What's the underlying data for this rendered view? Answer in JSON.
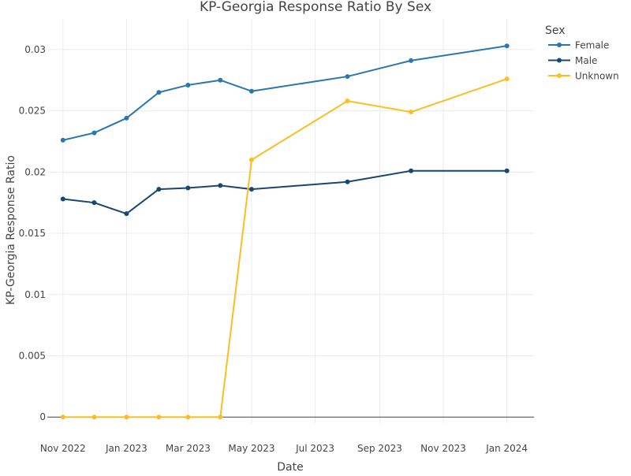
{
  "chart_data": {
    "type": "line",
    "title": "KP-Georgia Response Ratio By Sex",
    "xlabel": "Date",
    "ylabel": "KP-Georgia Response Ratio",
    "x": [
      "2022-11-01",
      "2022-12-01",
      "2023-01-01",
      "2023-02-01",
      "2023-03-01",
      "2023-04-01",
      "2023-05-01",
      "2023-08-01",
      "2023-10-01",
      "2024-01-01"
    ],
    "x_ticks": [
      {
        "date": "2022-11-01",
        "label": "Nov 2022"
      },
      {
        "date": "2023-01-01",
        "label": "Jan 2023"
      },
      {
        "date": "2023-03-01",
        "label": "Mar 2023"
      },
      {
        "date": "2023-05-01",
        "label": "May 2023"
      },
      {
        "date": "2023-07-01",
        "label": "Jul 2023"
      },
      {
        "date": "2023-09-01",
        "label": "Sep 2023"
      },
      {
        "date": "2023-11-01",
        "label": "Nov 2023"
      },
      {
        "date": "2024-01-01",
        "label": "Jan 2024"
      }
    ],
    "xlim": [
      "2022-10-17",
      "2024-01-27"
    ],
    "ylim": [
      -0.0005,
      0.0325
    ],
    "y_ticks": [
      {
        "value": 0,
        "label": "0"
      },
      {
        "value": 0.005,
        "label": "0.005"
      },
      {
        "value": 0.01,
        "label": "0.01"
      },
      {
        "value": 0.015,
        "label": "0.015"
      },
      {
        "value": 0.02,
        "label": "0.02"
      },
      {
        "value": 0.025,
        "label": "0.025"
      },
      {
        "value": 0.03,
        "label": "0.03"
      }
    ],
    "grid": true,
    "legend": {
      "title": "Sex",
      "position": "top-right"
    },
    "series": [
      {
        "name": "Female",
        "color": "#2a77ad",
        "values": [
          0.0226,
          0.0232,
          0.0244,
          0.0265,
          0.0271,
          0.0275,
          0.0266,
          0.0278,
          0.0291,
          0.0303
        ]
      },
      {
        "name": "Male",
        "color": "#1a4670",
        "values": [
          0.0178,
          0.0175,
          0.0166,
          0.0186,
          0.0187,
          0.0189,
          0.0186,
          0.0192,
          0.0201,
          0.0201
        ]
      },
      {
        "name": "Unknown",
        "color": "#fbbf24",
        "values": [
          0.0,
          0.0,
          0.0,
          0.0,
          0.0,
          0.0,
          0.021,
          0.0258,
          0.0249,
          0.0276
        ]
      }
    ]
  }
}
